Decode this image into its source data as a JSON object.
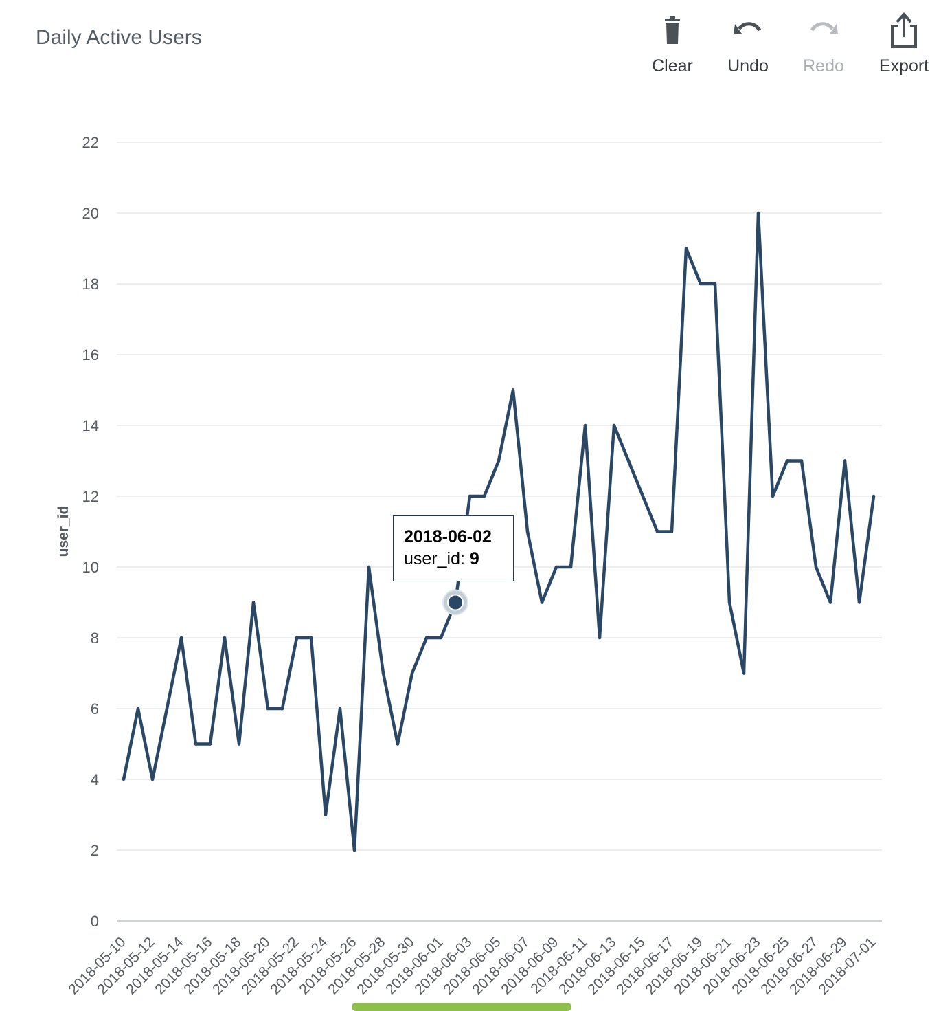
{
  "title": "Daily Active Users",
  "toolbar": {
    "clear_label": "Clear",
    "undo_label": "Undo",
    "redo_label": "Redo",
    "export_label": "Export",
    "icons": [
      "trash-icon",
      "undo-icon",
      "redo-icon",
      "export-icon"
    ]
  },
  "colors": {
    "line": "#2a4766",
    "grid": "#e6e8ea",
    "axis": "#c9d3dc",
    "scrollbar": "#8dc04a",
    "disabled": "#a8adb2"
  },
  "tooltip": {
    "date": "2018-06-02",
    "series_label": "user_id:",
    "value": "9"
  },
  "chart_data": {
    "type": "line",
    "title": "Daily Active Users",
    "xlabel": "",
    "ylabel": "user_id",
    "ylim": [
      0,
      22
    ],
    "yticks": [
      0,
      2,
      4,
      6,
      8,
      10,
      12,
      14,
      16,
      18,
      20,
      22
    ],
    "grid": true,
    "x": [
      "2018-05-10",
      "2018-05-11",
      "2018-05-12",
      "2018-05-13",
      "2018-05-14",
      "2018-05-15",
      "2018-05-16",
      "2018-05-17",
      "2018-05-18",
      "2018-05-19",
      "2018-05-20",
      "2018-05-21",
      "2018-05-22",
      "2018-05-23",
      "2018-05-24",
      "2018-05-25",
      "2018-05-26",
      "2018-05-27",
      "2018-05-28",
      "2018-05-29",
      "2018-05-30",
      "2018-05-31",
      "2018-06-01",
      "2018-06-02",
      "2018-06-03",
      "2018-06-04",
      "2018-06-05",
      "2018-06-06",
      "2018-06-07",
      "2018-06-08",
      "2018-06-09",
      "2018-06-10",
      "2018-06-11",
      "2018-06-12",
      "2018-06-13",
      "2018-06-14",
      "2018-06-15",
      "2018-06-16",
      "2018-06-17",
      "2018-06-18",
      "2018-06-19",
      "2018-06-20",
      "2018-06-21",
      "2018-06-22",
      "2018-06-23",
      "2018-06-24",
      "2018-06-25",
      "2018-06-26",
      "2018-06-27",
      "2018-06-28",
      "2018-06-29",
      "2018-06-30",
      "2018-07-01"
    ],
    "xticks": [
      "2018-05-10",
      "2018-05-12",
      "2018-05-14",
      "2018-05-16",
      "2018-05-18",
      "2018-05-20",
      "2018-05-22",
      "2018-05-24",
      "2018-05-26",
      "2018-05-28",
      "2018-05-30",
      "2018-06-01",
      "2018-06-03",
      "2018-06-05",
      "2018-06-07",
      "2018-06-09",
      "2018-06-11",
      "2018-06-13",
      "2018-06-15",
      "2018-06-17",
      "2018-06-19",
      "2018-06-21",
      "2018-06-23",
      "2018-06-25",
      "2018-06-27",
      "2018-06-29",
      "2018-07-01"
    ],
    "series": [
      {
        "values": [
          4,
          6,
          4,
          6,
          8,
          5,
          5,
          8,
          5,
          9,
          6,
          6,
          8,
          8,
          3,
          6,
          2,
          10,
          7,
          5,
          7,
          8,
          8,
          9,
          12,
          12,
          13,
          15,
          11,
          9,
          10,
          10,
          14,
          8,
          14,
          13,
          12,
          11,
          11,
          19,
          18,
          18,
          9,
          7,
          20,
          12,
          13,
          13,
          10,
          9,
          13,
          9,
          12
        ]
      }
    ],
    "highlight": {
      "x": "2018-06-02",
      "y": 9
    }
  }
}
